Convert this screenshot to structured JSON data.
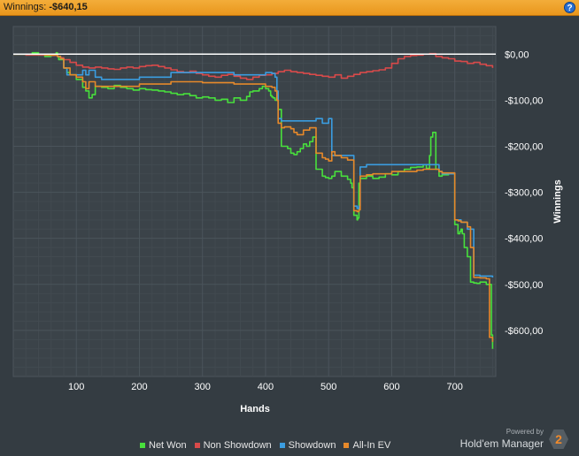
{
  "header": {
    "label": "Winnings:",
    "value": "-$640,15",
    "help": "?"
  },
  "brand": {
    "powered_by": "Powered by",
    "name": "Hold'em Manager",
    "badge": "2"
  },
  "chart_data": {
    "type": "line",
    "xlabel": "Hands",
    "ylabel": "Winnings",
    "xlim": [
      0,
      765
    ],
    "ylim": [
      -700,
      60
    ],
    "x_ticks": [
      100,
      200,
      300,
      400,
      500,
      600,
      700
    ],
    "y_ticks": [
      0,
      -100,
      -200,
      -300,
      -400,
      -500,
      -600
    ],
    "y_tick_labels": [
      "$0,00",
      "-$100,00",
      "-$200,00",
      "-$300,00",
      "-$400,00",
      "-$500,00",
      "-$600,00"
    ],
    "y_axis_side": "right",
    "grid": true,
    "zero_line": true,
    "legend": "bottom",
    "colors": {
      "background": "#343c42",
      "plot": "#3b4349",
      "grid": "#4b545b",
      "zero_line": "#ffffff",
      "text": "#ffffff"
    },
    "series": [
      {
        "name": "Net Won",
        "color": "#48e03c",
        "x": [
          0,
          20,
          30,
          40,
          50,
          60,
          65,
          68,
          70,
          72,
          80,
          85,
          90,
          100,
          110,
          115,
          120,
          125,
          130,
          140,
          150,
          160,
          170,
          180,
          190,
          200,
          210,
          220,
          230,
          240,
          250,
          260,
          270,
          280,
          290,
          300,
          310,
          320,
          330,
          340,
          350,
          360,
          370,
          375,
          380,
          390,
          395,
          400,
          405,
          408,
          410,
          412,
          415,
          420,
          425,
          430,
          435,
          440,
          445,
          450,
          455,
          460,
          465,
          470,
          475,
          480,
          490,
          495,
          500,
          505,
          510,
          520,
          530,
          535,
          537,
          540,
          545,
          546,
          548,
          550,
          560,
          570,
          580,
          590,
          600,
          610,
          620,
          630,
          640,
          650,
          655,
          660,
          662,
          665,
          670,
          675,
          680,
          690,
          700,
          705,
          708,
          710,
          712,
          715,
          720,
          725,
          730,
          735,
          740,
          750,
          755,
          758,
          760
        ],
        "y": [
          0,
          0,
          3,
          -2,
          -5,
          -3,
          -2,
          3,
          -5,
          -12,
          -30,
          -40,
          -45,
          -55,
          -72,
          -80,
          -95,
          -88,
          -70,
          -72,
          -75,
          -68,
          -72,
          -75,
          -78,
          -75,
          -77,
          -78,
          -80,
          -82,
          -85,
          -88,
          -86,
          -90,
          -95,
          -93,
          -95,
          -100,
          -98,
          -105,
          -95,
          -100,
          -92,
          -82,
          -80,
          -75,
          -70,
          -75,
          -80,
          -90,
          -93,
          -95,
          -100,
          -120,
          -200,
          -200,
          -205,
          -215,
          -218,
          -212,
          -205,
          -195,
          -200,
          -190,
          -180,
          -250,
          -265,
          -268,
          -270,
          -265,
          -255,
          -265,
          -272,
          -280,
          -290,
          -350,
          -360,
          -356,
          -280,
          -270,
          -265,
          -270,
          -267,
          -260,
          -262,
          -255,
          -250,
          -246,
          -245,
          -240,
          -248,
          -220,
          -180,
          -170,
          -250,
          -265,
          -262,
          -260,
          -370,
          -390,
          -385,
          -380,
          -390,
          -420,
          -440,
          -495,
          -497,
          -498,
          -495,
          -500,
          -500,
          -610,
          -640
        ]
      },
      {
        "name": "Non Showdown",
        "color": "#d84a4a",
        "x": [
          0,
          20,
          40,
          60,
          70,
          75,
          80,
          90,
          100,
          110,
          120,
          130,
          140,
          150,
          160,
          170,
          180,
          190,
          200,
          210,
          220,
          230,
          240,
          250,
          260,
          270,
          280,
          290,
          300,
          310,
          320,
          330,
          340,
          350,
          360,
          370,
          380,
          390,
          400,
          410,
          420,
          430,
          440,
          450,
          460,
          470,
          480,
          490,
          500,
          510,
          520,
          530,
          540,
          550,
          560,
          570,
          580,
          590,
          600,
          610,
          620,
          630,
          640,
          650,
          655,
          660,
          670,
          680,
          690,
          700,
          710,
          720,
          730,
          740,
          750,
          760
        ],
        "y": [
          0,
          -2,
          -2,
          -3,
          -5,
          -8,
          -12,
          -18,
          -24,
          -28,
          -30,
          -28,
          -30,
          -32,
          -33,
          -30,
          -28,
          -30,
          -27,
          -25,
          -24,
          -27,
          -30,
          -34,
          -38,
          -40,
          -37,
          -42,
          -45,
          -48,
          -50,
          -46,
          -44,
          -48,
          -52,
          -55,
          -50,
          -46,
          -45,
          -42,
          -38,
          -35,
          -38,
          -40,
          -42,
          -44,
          -46,
          -48,
          -50,
          -45,
          -52,
          -48,
          -44,
          -40,
          -38,
          -36,
          -34,
          -30,
          -20,
          -10,
          -5,
          -3,
          -2,
          0,
          0,
          1,
          -5,
          -8,
          -10,
          -15,
          -16,
          -20,
          -18,
          -22,
          -25,
          -30
        ]
      },
      {
        "name": "Showdown",
        "color": "#3b9de0",
        "x": [
          0,
          30,
          50,
          70,
          75,
          80,
          85,
          110,
          115,
          120,
          130,
          140,
          150,
          180,
          200,
          250,
          300,
          350,
          400,
          410,
          415,
          418,
          420,
          425,
          430,
          470,
          480,
          490,
          500,
          505,
          510,
          525,
          530,
          540,
          545,
          548,
          550,
          560,
          600,
          640,
          650,
          660,
          665,
          670,
          675,
          680,
          700,
          710,
          720,
          730,
          740,
          760
        ],
        "y": [
          0,
          0,
          -2,
          -5,
          -10,
          -30,
          -45,
          -35,
          -45,
          -35,
          -50,
          -55,
          -55,
          -55,
          -50,
          -40,
          -40,
          -45,
          -40,
          -42,
          -50,
          -80,
          -140,
          -145,
          -145,
          -145,
          -140,
          -150,
          -140,
          -220,
          -220,
          -220,
          -220,
          -330,
          -335,
          -330,
          -245,
          -240,
          -240,
          -240,
          -240,
          -240,
          -240,
          -240,
          -255,
          -260,
          -360,
          -365,
          -380,
          -480,
          -482,
          -485
        ]
      },
      {
        "name": "All-In EV",
        "color": "#e6892a",
        "x": [
          0,
          30,
          50,
          70,
          75,
          80,
          90,
          100,
          110,
          115,
          120,
          130,
          150,
          200,
          250,
          300,
          350,
          400,
          410,
          415,
          418,
          420,
          425,
          430,
          440,
          445,
          450,
          460,
          470,
          480,
          490,
          495,
          500,
          505,
          510,
          520,
          530,
          540,
          545,
          548,
          550,
          560,
          570,
          600,
          640,
          650,
          660,
          665,
          670,
          675,
          680,
          700,
          705,
          710,
          720,
          725,
          730,
          740,
          750,
          755,
          760
        ],
        "y": [
          0,
          0,
          -2,
          -5,
          -10,
          -30,
          -45,
          -50,
          -60,
          -75,
          -60,
          -70,
          -70,
          -65,
          -60,
          -62,
          -65,
          -70,
          -72,
          -80,
          -100,
          -150,
          -160,
          -158,
          -162,
          -170,
          -175,
          -165,
          -160,
          -215,
          -225,
          -228,
          -232,
          -212,
          -220,
          -225,
          -230,
          -340,
          -342,
          -338,
          -265,
          -262,
          -260,
          -255,
          -252,
          -250,
          -250,
          -250,
          -250,
          -255,
          -258,
          -360,
          -362,
          -365,
          -375,
          -420,
          -485,
          -486,
          -488,
          -615,
          -625
        ]
      }
    ]
  }
}
